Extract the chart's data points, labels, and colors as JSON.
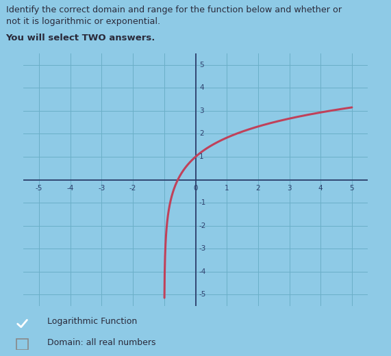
{
  "title_line1": "Identify the correct domain and range for the function below and whether or",
  "title_line2": "not it is logarithmic or exponential.",
  "subtitle": "You will select TWO answers.",
  "bg_color": "#8ecae6",
  "grid_color": "#6aafc8",
  "axis_color": "#2c3e6b",
  "curve_color": "#c0415a",
  "xlim": [
    -5.5,
    5.5
  ],
  "ylim": [
    -5.5,
    5.5
  ],
  "xticks": [
    -5,
    -4,
    -3,
    -2,
    -1,
    0,
    1,
    2,
    3,
    4,
    5
  ],
  "yticks": [
    -5,
    -4,
    -3,
    -2,
    -1,
    0,
    1,
    2,
    3,
    4,
    5
  ],
  "xtick_labels_show": [
    "-5",
    "-4",
    "-3",
    "-2",
    "",
    "0",
    "1",
    "2",
    "3",
    "4",
    "5"
  ],
  "ytick_labels_show": [
    "-5",
    "-4",
    "-3",
    "-2",
    "-1",
    "",
    "1",
    "2",
    "3",
    "4",
    "5"
  ],
  "answer1_checked": true,
  "answer1_text": "Logarithmic Function",
  "answer2_checked": false,
  "answer2_text": "Domain: all real numbers",
  "answer2_underline": "Domain",
  "check_bg_color": "#3a4fcc",
  "check_border_color": "#888888",
  "text_color": "#2a2a3a",
  "title_color": "#2a2a3a",
  "curve_scale": 1.2,
  "curve_shift_y": 1.0,
  "curve_asymptote_x": -1.0
}
